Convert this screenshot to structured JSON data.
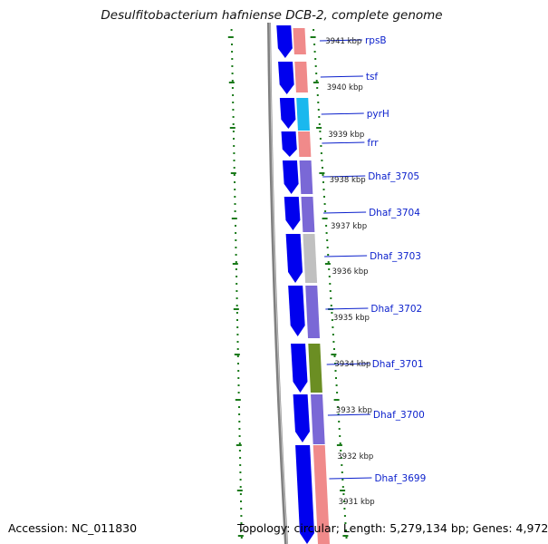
{
  "title": "Desulfitobacterium hafniense DCB-2, complete genome",
  "footer": {
    "accession": "Accession: NC_011830",
    "summary": "Topology: circular; Length: 5,279,134 bp; Genes: 4,972"
  },
  "colors": {
    "strand_arrow": "#0000ee",
    "backbone": "#808080",
    "tick": "#1a7a1a",
    "label": "#0a1fcc"
  },
  "genes": [
    {
      "name": "rpsB",
      "color": "#f08a8a"
    },
    {
      "name": "tsf",
      "color": "#f08a8a"
    },
    {
      "name": "pyrH",
      "color": "#1ab8ee"
    },
    {
      "name": "frr",
      "color": "#f08a8a"
    },
    {
      "name": "Dhaf_3705",
      "color": "#7a68d6"
    },
    {
      "name": "Dhaf_3704",
      "color": "#7a68d6"
    },
    {
      "name": "Dhaf_3703",
      "color": "#c0c0c0"
    },
    {
      "name": "Dhaf_3702",
      "color": "#7a68d6"
    },
    {
      "name": "Dhaf_3701",
      "color": "#6b8e23"
    },
    {
      "name": "Dhaf_3700",
      "color": "#7a68d6"
    },
    {
      "name": "Dhaf_3699",
      "color": "#f08a8a"
    }
  ],
  "coordinates": [
    "3941 kbp",
    "3940 kbp",
    "3939 kbp",
    "3938 kbp",
    "3937 kbp",
    "3936 kbp",
    "3935 kbp",
    "3934 kbp",
    "3933 kbp",
    "3932 kbp",
    "3931 kbp"
  ]
}
